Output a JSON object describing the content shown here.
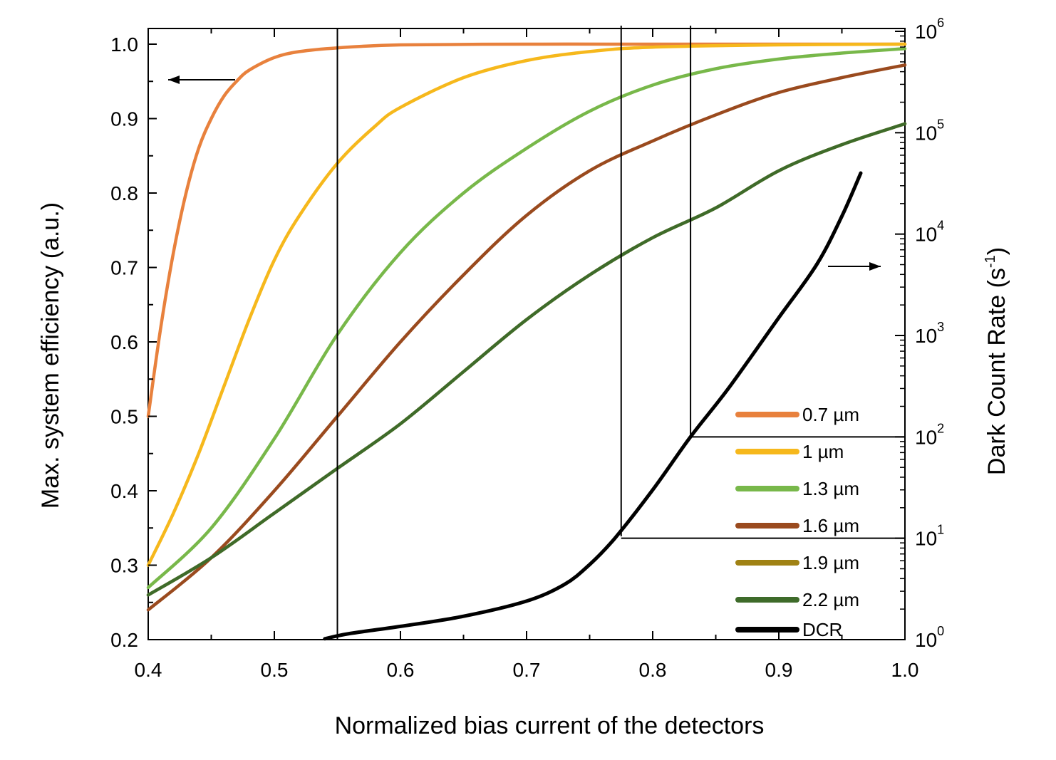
{
  "chart_data": {
    "type": "line",
    "xlabel": "Normalized bias current of the detectors",
    "ylabel_left": "Max. system efficiency (a.u.)",
    "ylabel_right": "Dark Count Rate (s",
    "ylabel_right_sup": "-1",
    "ylabel_right_close": ")",
    "xlim": [
      0.4,
      1.0
    ],
    "ylim_left": [
      0.2,
      1.02
    ],
    "ylim_right_log10": [
      0,
      6
    ],
    "right_axis_scale": "log",
    "x_ticks": [
      {
        "v": 0.4,
        "label": "0.4"
      },
      {
        "v": 0.5,
        "label": "0.5"
      },
      {
        "v": 0.6,
        "label": "0.6"
      },
      {
        "v": 0.7,
        "label": "0.7"
      },
      {
        "v": 0.8,
        "label": "0.8"
      },
      {
        "v": 0.9,
        "label": "0.9"
      },
      {
        "v": 1.0,
        "label": "1.0"
      }
    ],
    "y_left_ticks": [
      {
        "v": 0.2,
        "label": "0.2"
      },
      {
        "v": 0.3,
        "label": "0.3"
      },
      {
        "v": 0.4,
        "label": "0.4"
      },
      {
        "v": 0.5,
        "label": "0.5"
      },
      {
        "v": 0.6,
        "label": "0.6"
      },
      {
        "v": 0.7,
        "label": "0.7"
      },
      {
        "v": 0.8,
        "label": "0.8"
      },
      {
        "v": 0.9,
        "label": "0.9"
      },
      {
        "v": 1.0,
        "label": "1.0"
      }
    ],
    "y_right_ticks": [
      {
        "exp": 0,
        "base": "10",
        "sup": "0"
      },
      {
        "exp": 1,
        "base": "10",
        "sup": "1"
      },
      {
        "exp": 2,
        "base": "10",
        "sup": "2"
      },
      {
        "exp": 3,
        "base": "10",
        "sup": "3"
      },
      {
        "exp": 4,
        "base": "10",
        "sup": "4"
      },
      {
        "exp": 5,
        "base": "10",
        "sup": "5"
      },
      {
        "exp": 6,
        "base": "10",
        "sup": "6"
      }
    ],
    "legend_position": "bottom-right",
    "series": [
      {
        "name": "0.7 µm",
        "axis": "left",
        "color": "#e8813d",
        "x": [
          0.4,
          0.41,
          0.42,
          0.43,
          0.44,
          0.45,
          0.46,
          0.47,
          0.48,
          0.5,
          0.52,
          0.55,
          0.6,
          0.7,
          0.8,
          0.9,
          1.0
        ],
        "y": [
          0.5,
          0.62,
          0.72,
          0.8,
          0.86,
          0.9,
          0.93,
          0.95,
          0.965,
          0.982,
          0.99,
          0.995,
          0.999,
          1.0,
          1.0,
          1.0,
          1.0
        ]
      },
      {
        "name": "1 µm",
        "axis": "left",
        "color": "#f6b81c",
        "x": [
          0.4,
          0.42,
          0.44,
          0.46,
          0.48,
          0.5,
          0.52,
          0.55,
          0.58,
          0.6,
          0.65,
          0.7,
          0.75,
          0.8,
          0.9,
          1.0
        ],
        "y": [
          0.3,
          0.37,
          0.45,
          0.54,
          0.63,
          0.71,
          0.77,
          0.84,
          0.89,
          0.915,
          0.955,
          0.978,
          0.99,
          0.996,
          0.999,
          1.0
        ]
      },
      {
        "name": "1.3 µm",
        "axis": "left",
        "color": "#78b84a",
        "x": [
          0.4,
          0.45,
          0.5,
          0.55,
          0.6,
          0.65,
          0.7,
          0.75,
          0.8,
          0.85,
          0.9,
          0.95,
          1.0
        ],
        "y": [
          0.27,
          0.35,
          0.47,
          0.61,
          0.72,
          0.8,
          0.86,
          0.91,
          0.945,
          0.967,
          0.98,
          0.988,
          0.994
        ]
      },
      {
        "name": "1.6 µm",
        "axis": "left",
        "color": "#9a4a1e",
        "x": [
          0.4,
          0.45,
          0.5,
          0.55,
          0.6,
          0.65,
          0.7,
          0.75,
          0.8,
          0.85,
          0.9,
          0.95,
          1.0
        ],
        "y": [
          0.24,
          0.31,
          0.4,
          0.5,
          0.6,
          0.69,
          0.77,
          0.83,
          0.87,
          0.905,
          0.935,
          0.955,
          0.972
        ]
      },
      {
        "name": "1.9 µm",
        "axis": "left",
        "color": "#a08214",
        "x": [
          0.4,
          0.45,
          0.5,
          0.55,
          0.6,
          0.65,
          0.7,
          0.75,
          0.8,
          0.85,
          0.9,
          0.95,
          1.0
        ],
        "y": [
          0.26,
          0.31,
          0.37,
          0.43,
          0.49,
          0.56,
          0.63,
          0.69,
          0.74,
          0.78,
          0.83,
          0.865,
          0.893
        ]
      },
      {
        "name": "2.2 µm",
        "axis": "left",
        "color": "#3e6b2a",
        "x": [
          0.4,
          0.45,
          0.5,
          0.55,
          0.6,
          0.65,
          0.7,
          0.75,
          0.8,
          0.85,
          0.9,
          0.95,
          1.0
        ],
        "y": [
          0.26,
          0.31,
          0.37,
          0.43,
          0.49,
          0.56,
          0.63,
          0.69,
          0.74,
          0.78,
          0.83,
          0.865,
          0.893
        ]
      },
      {
        "name": "DCR",
        "axis": "right",
        "color": "#000000",
        "x": [
          0.54,
          0.56,
          0.6,
          0.65,
          0.7,
          0.73,
          0.75,
          0.77,
          0.8,
          0.83,
          0.86,
          0.9,
          0.93,
          0.95,
          0.965
        ],
        "y": [
          1.02,
          1.15,
          1.35,
          1.7,
          2.4,
          3.5,
          5.5,
          10,
          30,
          100,
          300,
          1500,
          5000,
          15000,
          40000
        ]
      }
    ]
  }
}
